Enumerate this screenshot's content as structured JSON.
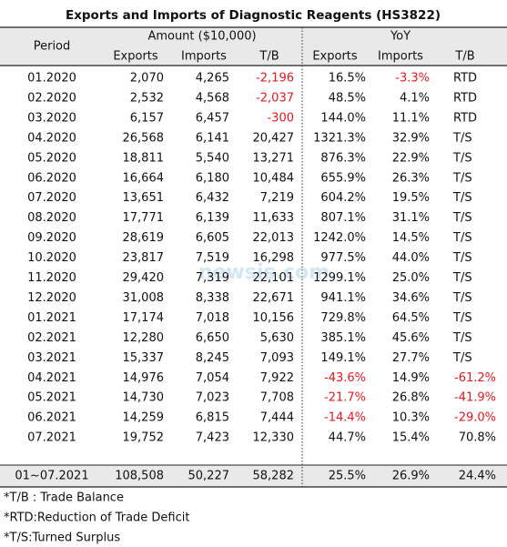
{
  "title": "Exports and Imports of Diagnostic Reagents (HS3822)",
  "header": {
    "period": "Period",
    "amount": "Amount ($10,000)",
    "yoy": "YoY",
    "sub": [
      "Exports",
      "Imports",
      "T/B",
      "Exports",
      "Imports",
      "T/B"
    ]
  },
  "table": {
    "rows": [
      [
        "01.2020",
        "2,070",
        "4,265",
        "-2,196",
        "16.5%",
        "-3.3%",
        "RTD"
      ],
      [
        "02.2020",
        "2,532",
        "4,568",
        "-2,037",
        "48.5%",
        "4.1%",
        "RTD"
      ],
      [
        "03.2020",
        "6,157",
        "6,457",
        "-300",
        "144.0%",
        "11.1%",
        "RTD"
      ],
      [
        "04.2020",
        "26,568",
        "6,141",
        "20,427",
        "1321.3%",
        "32.9%",
        "T/S"
      ],
      [
        "05.2020",
        "18,811",
        "5,540",
        "13,271",
        "876.3%",
        "22.9%",
        "T/S"
      ],
      [
        "06.2020",
        "16,664",
        "6,180",
        "10,484",
        "655.9%",
        "26.3%",
        "T/S"
      ],
      [
        "07.2020",
        "13,651",
        "6,432",
        "7,219",
        "604.2%",
        "19.5%",
        "T/S"
      ],
      [
        "08.2020",
        "17,771",
        "6,139",
        "11,633",
        "807.1%",
        "31.1%",
        "T/S"
      ],
      [
        "09.2020",
        "28,619",
        "6,605",
        "22,013",
        "1242.0%",
        "14.5%",
        "T/S"
      ],
      [
        "10.2020",
        "23,817",
        "7,519",
        "16,298",
        "977.5%",
        "44.0%",
        "T/S"
      ],
      [
        "11.2020",
        "29,420",
        "7,319",
        "22,101",
        "1299.1%",
        "25.0%",
        "T/S"
      ],
      [
        "12.2020",
        "31,008",
        "8,338",
        "22,671",
        "941.1%",
        "34.6%",
        "T/S"
      ],
      [
        "01.2021",
        "17,174",
        "7,018",
        "10,156",
        "729.8%",
        "64.5%",
        "T/S"
      ],
      [
        "02.2021",
        "12,280",
        "6,650",
        "5,630",
        "385.1%",
        "45.6%",
        "T/S"
      ],
      [
        "03.2021",
        "15,337",
        "8,245",
        "7,093",
        "149.1%",
        "27.7%",
        "T/S"
      ],
      [
        "04.2021",
        "14,976",
        "7,054",
        "7,922",
        "-43.6%",
        "14.9%",
        "-61.2%"
      ],
      [
        "05.2021",
        "14,730",
        "7,023",
        "7,708",
        "-21.7%",
        "26.8%",
        "-41.9%"
      ],
      [
        "06.2021",
        "14,259",
        "6,815",
        "7,444",
        "-14.4%",
        "10.3%",
        "-29.0%"
      ],
      [
        "07.2021",
        "19,752",
        "7,423",
        "12,330",
        "44.7%",
        "15.4%",
        "70.8%"
      ]
    ],
    "total": [
      "01~07.2021",
      "108,508",
      "50,227",
      "58,282",
      "25.5%",
      "26.9%",
      "24.4%"
    ]
  },
  "notes": [
    "*T/B : Trade Balance",
    "*RTD:Reduction of Trade Deficit",
    "*T/S:Turned Surplus"
  ],
  "watermark": "newsis.com"
}
